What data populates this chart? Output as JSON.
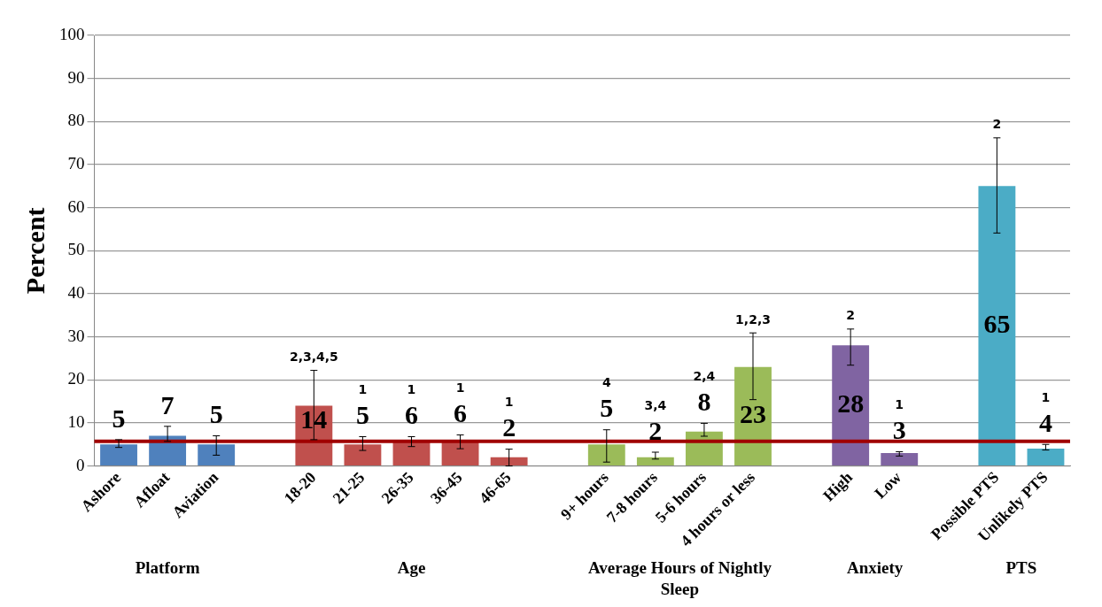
{
  "chart_data": {
    "type": "bar",
    "ylabel": "Percent",
    "categories": [
      "Ashore",
      "Afloat",
      "Aviation",
      null,
      "18-20",
      "21-25",
      "26-35",
      "36-45",
      "46-65",
      null,
      "9+ hours",
      "7-8 hours",
      "5-6 hours",
      "4 hours or less",
      null,
      "High",
      "Low",
      null,
      "Possible PTS",
      "Unlikely PTS"
    ],
    "values": [
      5,
      7,
      5,
      null,
      14,
      5,
      6,
      6,
      2,
      null,
      5,
      2,
      8,
      23,
      null,
      28,
      3,
      null,
      65,
      4
    ],
    "colors": [
      "#4f81bd",
      "#4f81bd",
      "#4f81bd",
      null,
      "#c0504d",
      "#c0504d",
      "#c0504d",
      "#c0504d",
      "#c0504d",
      null,
      "#9bbb59",
      "#9bbb59",
      "#9bbb59",
      "#9bbb59",
      null,
      "#8064a2",
      "#8064a2",
      null,
      "#4bacc6",
      "#4bacc6"
    ],
    "errors": [
      [
        4.3,
        6.1
      ],
      [
        5.7,
        9.2
      ],
      [
        2.5,
        7.0
      ],
      null,
      [
        6.1,
        22.2
      ],
      [
        3.6,
        6.8
      ],
      [
        4.5,
        6.8
      ],
      [
        4.0,
        7.2
      ],
      [
        0,
        3.9
      ],
      null,
      [
        0.9,
        8.4
      ],
      [
        1.6,
        3.2
      ],
      [
        6.9,
        9.9
      ],
      [
        15.4,
        30.9
      ],
      null,
      [
        23.4,
        31.8
      ],
      [
        2.3,
        3.3
      ],
      null,
      [
        54.1,
        76.2
      ],
      [
        3.7,
        5.0
      ]
    ],
    "data_labels": true,
    "ylim": [
      0,
      100
    ],
    "yticks": [
      0,
      10,
      20,
      30,
      40,
      50,
      60,
      70,
      80,
      90,
      100
    ],
    "grid": "y",
    "legend": false,
    "ref_lines": [
      {
        "axis": "y",
        "value": 5.7,
        "color": "#a00000"
      }
    ],
    "annotations": [
      "Platform",
      "Age",
      "Average Hours of Nightly Sleep",
      "Anxiety",
      "PTS",
      "2,3,4,5",
      "1",
      "1",
      "1",
      "1",
      "4",
      "3,4",
      "2,4",
      "1,2,3",
      "2",
      "1",
      "2",
      "1"
    ]
  }
}
